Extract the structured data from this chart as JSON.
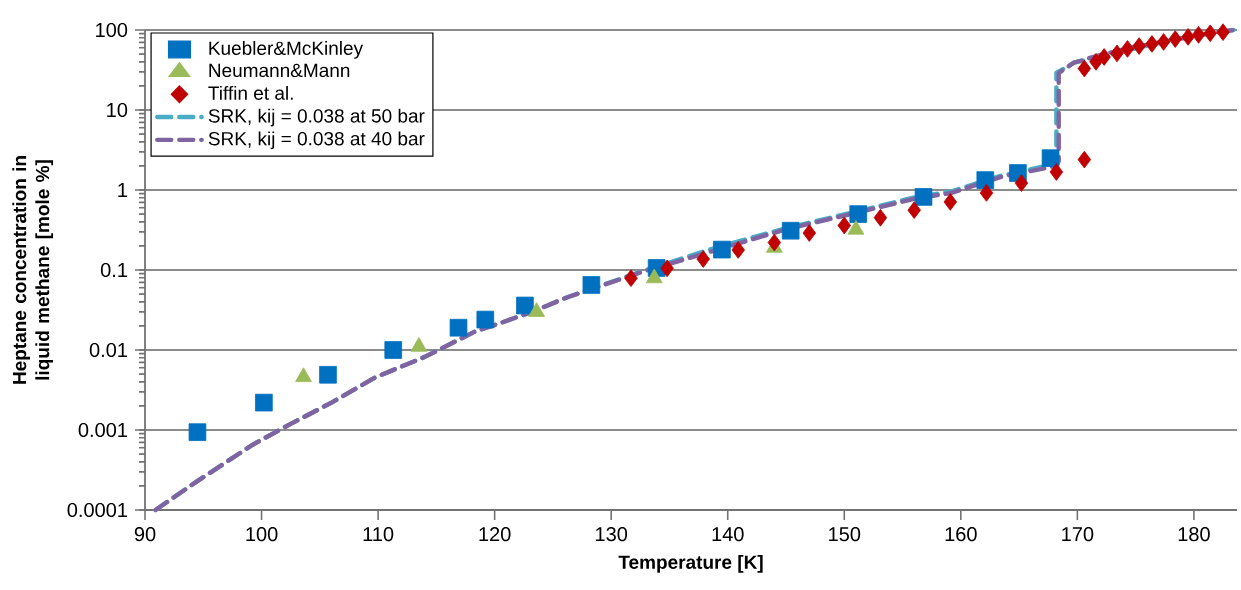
{
  "chart_data": {
    "type": "scatter",
    "xlabel": "Temperature [K]",
    "ylabel": "Heptane concentration in liquid methane [mole %]",
    "xlim": [
      90,
      183.7
    ],
    "xticks": [
      90,
      100,
      110,
      120,
      130,
      140,
      150,
      160,
      170,
      180
    ],
    "ylim": [
      0.0001,
      100
    ],
    "yticks": [
      0.0001,
      0.001,
      0.01,
      0.1,
      1,
      10,
      100
    ],
    "log": "y",
    "grid": "y",
    "legend": "top left",
    "series": [
      {
        "name": "Kuebler&McKinley",
        "marker": "square",
        "color": "#0070c0",
        "x": [
          94.5,
          100.2,
          105.7,
          111.3,
          116.9,
          119.2,
          122.6,
          128.3,
          133.9,
          139.5,
          145.4,
          151.2,
          156.8,
          162.1,
          164.9,
          167.7
        ],
        "values": [
          0.00094,
          0.0022,
          0.0049,
          0.01,
          0.019,
          0.024,
          0.036,
          0.065,
          0.106,
          0.18,
          0.31,
          0.5,
          0.82,
          1.33,
          1.63,
          2.5
        ]
      },
      {
        "name": "Neumann&Mann",
        "marker": "triangle",
        "color": "#9bbb59",
        "x": [
          103.6,
          113.5,
          123.6,
          133.7,
          144.0,
          151.0
        ],
        "values": [
          0.0046,
          0.011,
          0.03,
          0.079,
          0.19,
          0.32
        ]
      },
      {
        "name": "Tiffin et al.",
        "marker": "diamond",
        "color": "#c00000",
        "x": [
          131.7,
          134.8,
          137.9,
          140.9,
          144.0,
          147.0,
          150.0,
          153.1,
          156.0,
          159.1,
          162.2,
          165.2,
          168.2,
          170.6,
          170.6,
          171.6,
          172.3,
          173.4,
          174.3,
          175.3,
          176.4,
          177.4,
          178.4,
          179.5,
          180.4,
          181.4,
          182.5
        ],
        "values": [
          0.079,
          0.105,
          0.137,
          0.178,
          0.22,
          0.29,
          0.36,
          0.45,
          0.56,
          0.71,
          0.92,
          1.22,
          1.68,
          2.4,
          33,
          40,
          46,
          51,
          58,
          63,
          67,
          71,
          77,
          82,
          87,
          91,
          94
        ]
      },
      {
        "name": "SRK, kij = 0.038 at 50 bar",
        "type": "line",
        "marker": "none",
        "line_style": "dashed",
        "color": "#4bacc6",
        "x": [
          90.9,
          94.3,
          99.2,
          102.3,
          106.0,
          109.7,
          114.0,
          118.3,
          120.6,
          123.2,
          126.3,
          132.6,
          139.2,
          144.9,
          151.3,
          155.9,
          159.2,
          163.4,
          168.0,
          168.2,
          168.2,
          169.7,
          172.0,
          174.8,
          177.7,
          180.6,
          183.4
        ],
        "values": [
          0.0001,
          0.00022,
          0.00065,
          0.00115,
          0.0022,
          0.0045,
          0.0082,
          0.017,
          0.022,
          0.03,
          0.046,
          0.096,
          0.195,
          0.33,
          0.55,
          0.8,
          0.96,
          1.5,
          2.1,
          2.4,
          29,
          39,
          null,
          null,
          73,
          87,
          100
        ]
      },
      {
        "name": "SRK, kij = 0.038  at 40 bar",
        "type": "line",
        "marker": "none",
        "line_style": "dashed",
        "color": "#8064a2",
        "x": [
          90.9,
          94.3,
          99.2,
          102.3,
          106.0,
          109.7,
          114.0,
          118.3,
          120.6,
          123.2,
          126.3,
          132.6,
          139.2,
          144.9,
          151.3,
          155.9,
          159.2,
          163.4,
          168.2,
          168.4,
          168.4,
          169.7,
          172.0,
          174.8,
          177.7,
          180.6,
          183.4
        ],
        "values": [
          0.0001,
          0.00022,
          0.00065,
          0.00115,
          0.0022,
          0.0045,
          0.0082,
          0.017,
          0.022,
          0.03,
          0.046,
          0.094,
          null,
          0.32,
          0.53,
          0.77,
          0.92,
          1.45,
          2.0,
          2.3,
          29,
          39,
          49,
          61,
          73,
          87,
          100
        ]
      }
    ]
  }
}
